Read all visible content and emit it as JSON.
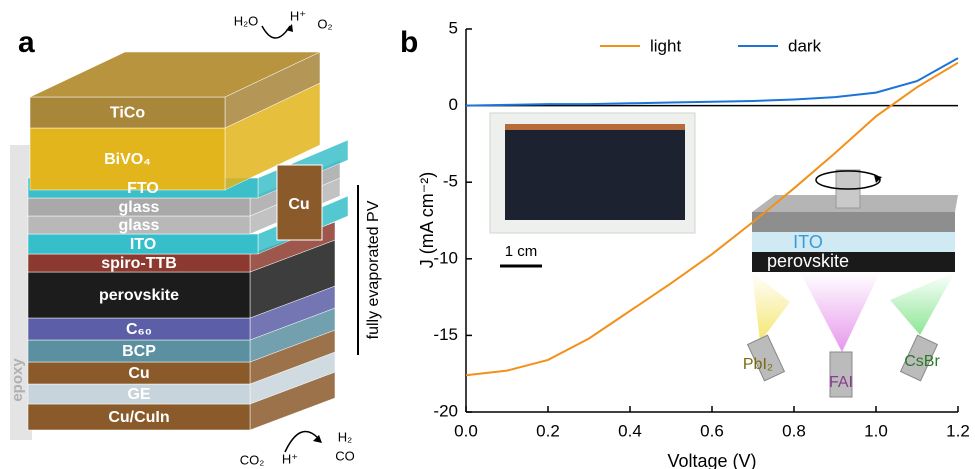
{
  "diagram": {
    "panel_label": "a",
    "layers": [
      "TiCo",
      "BiVO₄",
      "FTO",
      "glass",
      "glass",
      "ITO",
      "spiro-TTB",
      "perovskite",
      "C₆₀",
      "BCP",
      "Cu",
      "GE",
      "Cu/CuIn"
    ],
    "contact": "Cu",
    "encapsulant": "epoxy",
    "bracket_label": "fully evaporated PV",
    "top_reaction": [
      "H₂O",
      "H⁺",
      "O₂"
    ],
    "bottom_reaction": [
      "CO₂",
      "H⁺",
      "H₂",
      "CO"
    ]
  },
  "chart_data": {
    "type": "line",
    "panel_label": "b",
    "xlabel": "Voltage (V)",
    "ylabel": "J (mA cm⁻²)",
    "x": [
      0,
      0.1,
      0.2,
      0.3,
      0.4,
      0.5,
      0.6,
      0.7,
      0.8,
      0.9,
      1.0,
      1.1,
      1.2
    ],
    "series": [
      {
        "name": "light",
        "color": "#f39019",
        "values": [
          -17.6,
          -17.3,
          -16.6,
          -15.2,
          -13.4,
          -11.6,
          -9.7,
          -7.6,
          -5.4,
          -3.1,
          -0.7,
          1.2,
          2.8
        ]
      },
      {
        "name": "dark",
        "color": "#1b74d8",
        "values": [
          0,
          0.05,
          0.1,
          0.1,
          0.15,
          0.2,
          0.25,
          0.3,
          0.4,
          0.55,
          0.85,
          1.6,
          3.1
        ]
      }
    ],
    "xlim": [
      0,
      1.2
    ],
    "xticks": [
      {
        "value": 0,
        "label": "0.0"
      },
      0.2,
      0.4,
      0.6,
      0.8,
      {
        "value": 1,
        "label": "1.0"
      },
      1.2
    ],
    "ylim": [
      -20,
      5
    ],
    "yticks": [
      -20,
      -15,
      -10,
      -5,
      0,
      5
    ],
    "zero_line": true,
    "legend": "top",
    "inset_photo": {
      "scale_bar": "1 cm"
    },
    "inset_schematic": {
      "layers": [
        "ITO",
        "perovskite"
      ],
      "sources": [
        "PbI₂",
        "FAI",
        "CsBr"
      ]
    }
  }
}
